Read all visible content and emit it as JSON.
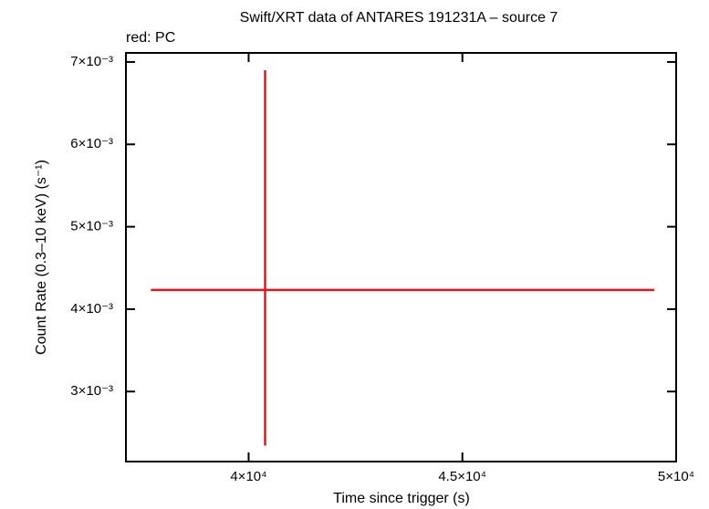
{
  "chart_data": {
    "type": "errorbar",
    "title": "Swift/XRT data of ANTARES 191231A – source 7",
    "subtitle": "red: PC",
    "xlabel": "Time since trigger (s)",
    "ylabel": "Count Rate (0.3–10 keV) (s⁻¹)",
    "xlim": [
      37130,
      50000
    ],
    "ylim": [
      0.00215,
      0.00711
    ],
    "xticks": [
      {
        "value": 40000,
        "label": "4×10⁴"
      },
      {
        "value": 45000,
        "label": "4.5×10⁴"
      },
      {
        "value": 50000,
        "label": "5×10⁴"
      }
    ],
    "yticks": [
      {
        "value": 0.003,
        "label": "3×10⁻³"
      },
      {
        "value": 0.004,
        "label": "4×10⁻³"
      },
      {
        "value": 0.005,
        "label": "5×10⁻³"
      },
      {
        "value": 0.006,
        "label": "6×10⁻³"
      },
      {
        "value": 0.007,
        "label": "7×10⁻³"
      }
    ],
    "series": [
      {
        "color": "#e8141a",
        "x": [
          40385
        ],
        "xerr_minus": [
          2671
        ],
        "xerr_plus": [
          9102
        ],
        "y": [
          0.004233
        ],
        "yerr_minus": [
          0.001889
        ],
        "yerr_plus": [
          0.002667
        ]
      }
    ]
  }
}
